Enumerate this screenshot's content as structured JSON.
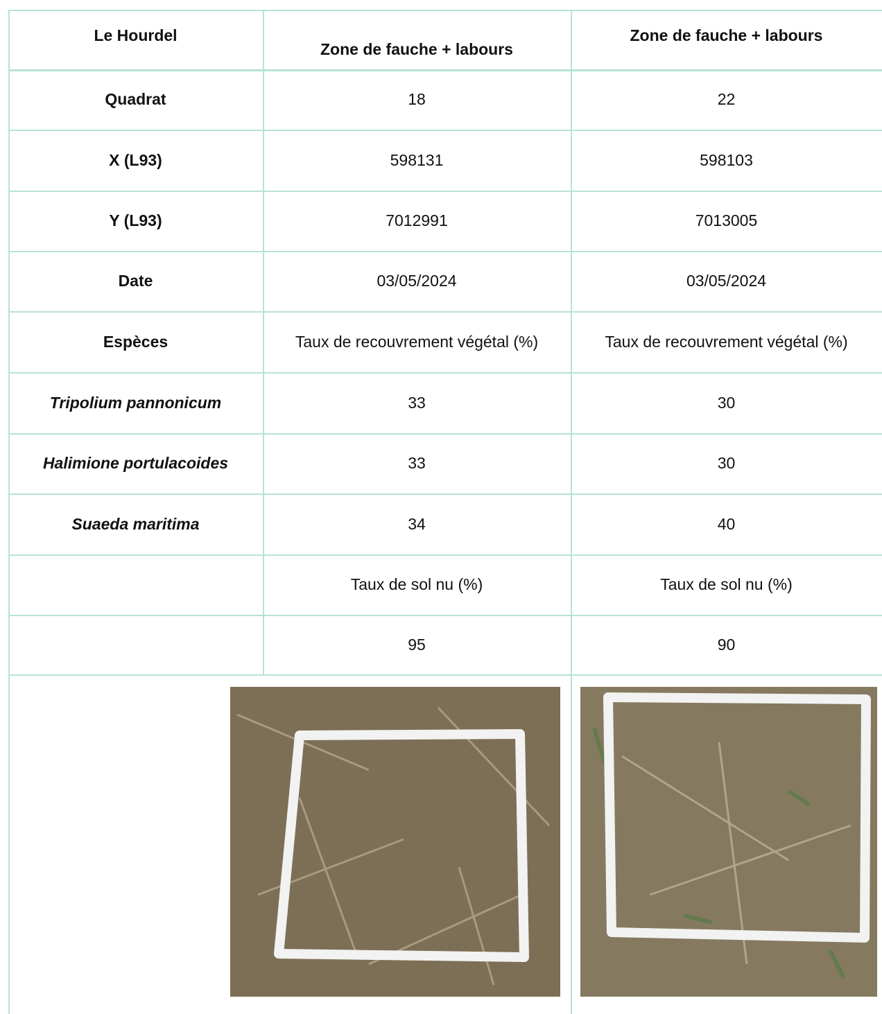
{
  "table": {
    "header": [
      "Le Hourdel",
      "Zone de fauche + labours",
      "Zone de fauche + labours"
    ],
    "rows": [
      [
        "Quadrat",
        "18",
        "22"
      ],
      [
        "X (L93)",
        "598131",
        "598103"
      ],
      [
        "Y (L93)",
        "7012991",
        "7013005"
      ],
      [
        "Date",
        "03/05/2024",
        "03/05/2024"
      ],
      [
        "Espèces",
        "Taux de recouvrement végétal (%)",
        "Taux de recouvrement végétal (%)"
      ],
      [
        "Tripolium pannonicum",
        "33",
        "30"
      ],
      [
        "Halimione portulacoides",
        "33",
        "30"
      ],
      [
        "Suaeda maritima",
        "34",
        "40"
      ],
      [
        "Taux de sol nu (%)",
        "Taux de sol nu (%)"
      ],
      [
        "95",
        "90"
      ]
    ]
  }
}
